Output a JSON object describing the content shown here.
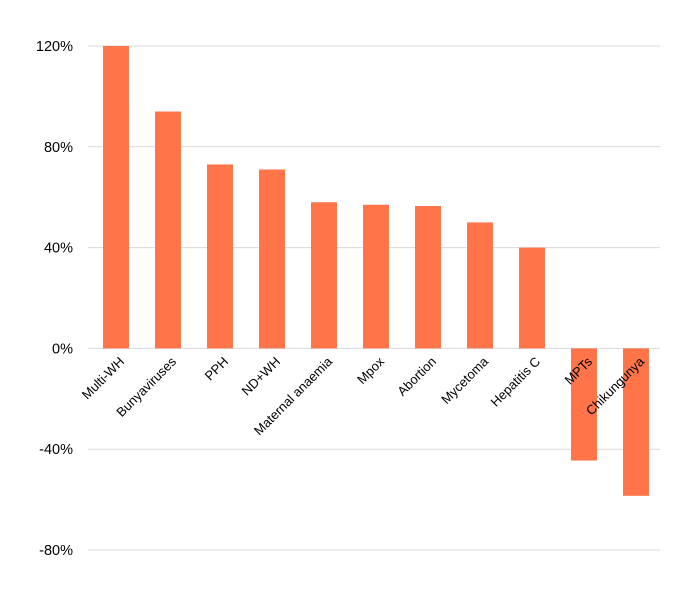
{
  "chart_data": {
    "type": "bar",
    "categories": [
      "Multi-WH",
      "Bunyaviruses",
      "PPH",
      "ND+WH",
      "Maternal anaemia",
      "Mpox",
      "Abortion",
      "Mycetoma",
      "Hepatitis C",
      "MPTs",
      "Chikungunya"
    ],
    "values": [
      120,
      94,
      73,
      71,
      58,
      57,
      56.5,
      50,
      40,
      -44.5,
      -58.5
    ],
    "y_ticks": [
      120,
      80,
      40,
      0,
      -40,
      -80
    ],
    "y_tick_labels": [
      "120%",
      "80%",
      "40%",
      "0%",
      "-40%",
      "-80%"
    ],
    "ylim": [
      -80,
      120
    ],
    "grid": true,
    "legend": "none",
    "colors": {
      "bar": "#FF7549",
      "grid": "#D9D9D9"
    }
  }
}
